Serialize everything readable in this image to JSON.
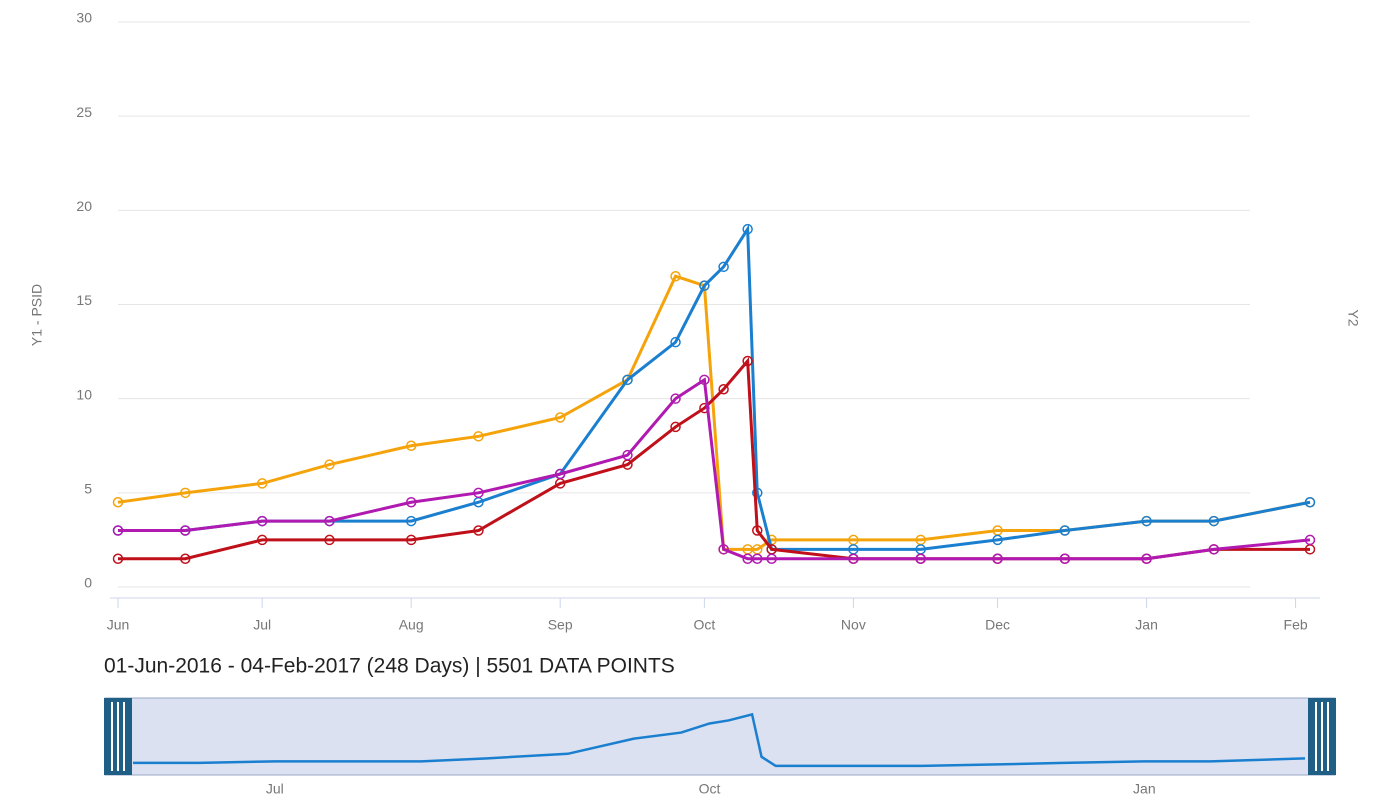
{
  "chart_data": {
    "type": "line",
    "y_label": "Y1 - PSID",
    "y2_label": "Y2",
    "subtitle": "01-Jun-2016 - 04-Feb-2017 (248 Days) | 5501 DATA POINTS",
    "x": [
      "2016-06-01",
      "2016-06-15",
      "2016-07-01",
      "2016-07-15",
      "2016-08-01",
      "2016-08-15",
      "2016-09-01",
      "2016-09-15",
      "2016-09-25",
      "2016-10-01",
      "2016-10-05",
      "2016-10-10",
      "2016-10-12",
      "2016-10-15",
      "2016-11-01",
      "2016-11-15",
      "2016-12-01",
      "2016-12-15",
      "2017-01-01",
      "2017-01-15",
      "2017-02-04"
    ],
    "series": [
      {
        "name": "Orange",
        "color": "#f5a30a",
        "values": [
          4.5,
          5,
          5.5,
          6.5,
          7.5,
          8,
          9,
          11,
          16.5,
          16,
          2,
          2,
          2,
          2.5,
          2.5,
          2.5,
          3,
          3,
          3.5,
          3.5,
          4.5
        ]
      },
      {
        "name": "Blue",
        "color": "#1b7fd0",
        "values": [
          3,
          3,
          3.5,
          3.5,
          3.5,
          4.5,
          6,
          11,
          13,
          16,
          17,
          19,
          5,
          2,
          2,
          2,
          2.5,
          3,
          3.5,
          3.5,
          4.5
        ]
      },
      {
        "name": "Red",
        "color": "#c0101a",
        "values": [
          1.5,
          1.5,
          2.5,
          2.5,
          2.5,
          3,
          5.5,
          6.5,
          8.5,
          9.5,
          10.5,
          12,
          3,
          2,
          1.5,
          1.5,
          1.5,
          1.5,
          1.5,
          2,
          2
        ]
      },
      {
        "name": "Purple",
        "color": "#b01ab0",
        "values": [
          3,
          3,
          3.5,
          3.5,
          4.5,
          5,
          6,
          7,
          10,
          11,
          2,
          1.5,
          1.5,
          1.5,
          1.5,
          1.5,
          1.5,
          1.5,
          1.5,
          2,
          2.5
        ]
      }
    ],
    "xlim": [
      "2016-06-01",
      "2017-02-04"
    ],
    "xticks": [
      {
        "value": "2016-06-01",
        "label": "Jun"
      },
      {
        "value": "2016-07-01",
        "label": "Jul"
      },
      {
        "value": "2016-08-01",
        "label": "Aug"
      },
      {
        "value": "2016-09-01",
        "label": "Sep"
      },
      {
        "value": "2016-10-01",
        "label": "Oct"
      },
      {
        "value": "2016-11-01",
        "label": "Nov"
      },
      {
        "value": "2016-12-01",
        "label": "Dec"
      },
      {
        "value": "2017-01-01",
        "label": "Jan"
      },
      {
        "value": "2017-02-01",
        "label": "Feb"
      }
    ],
    "ylim": [
      0,
      30
    ],
    "yticks": [
      0,
      5,
      10,
      15,
      20,
      25,
      30
    ],
    "grid": true,
    "navigator_xticks": [
      {
        "value": "2016-07-01",
        "label": "Jul"
      },
      {
        "value": "2016-10-01",
        "label": "Oct"
      },
      {
        "value": "2017-01-01",
        "label": "Jan"
      }
    ]
  }
}
